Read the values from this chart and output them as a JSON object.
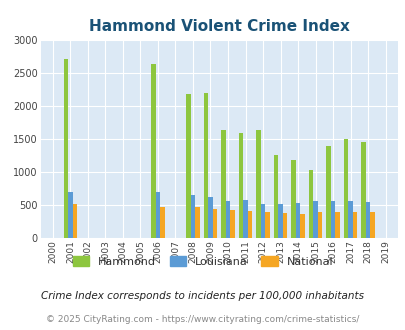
{
  "title": "Hammond Violent Crime Index",
  "years": [
    "2000",
    "2001",
    "2002",
    "2003",
    "2004",
    "2005",
    "2006",
    "2007",
    "2008",
    "2009",
    "2010",
    "2011",
    "2012",
    "2013",
    "2014",
    "2015",
    "2016",
    "2017",
    "2018",
    "2019"
  ],
  "hammond": [
    0,
    2700,
    0,
    0,
    0,
    0,
    2630,
    0,
    2170,
    2190,
    1630,
    1590,
    1630,
    1250,
    1180,
    1030,
    1390,
    1490,
    1450,
    0
  ],
  "louisiana": [
    0,
    690,
    0,
    0,
    0,
    0,
    690,
    0,
    650,
    610,
    550,
    565,
    510,
    510,
    530,
    550,
    560,
    560,
    540,
    0
  ],
  "national": [
    0,
    510,
    0,
    0,
    0,
    0,
    470,
    0,
    465,
    430,
    420,
    400,
    390,
    370,
    365,
    385,
    395,
    395,
    385,
    0
  ],
  "hammond_color": "#8dc63f",
  "louisiana_color": "#5b9bd5",
  "national_color": "#f5a623",
  "bg_color": "#dce9f5",
  "title_color": "#1a5276",
  "ylim": [
    0,
    3000
  ],
  "yticks": [
    0,
    500,
    1000,
    1500,
    2000,
    2500,
    3000
  ],
  "footnote1": "Crime Index corresponds to incidents per 100,000 inhabitants",
  "footnote2": "© 2025 CityRating.com - https://www.cityrating.com/crime-statistics/",
  "legend_labels": [
    "Hammond",
    "Louisiana",
    "National"
  ]
}
